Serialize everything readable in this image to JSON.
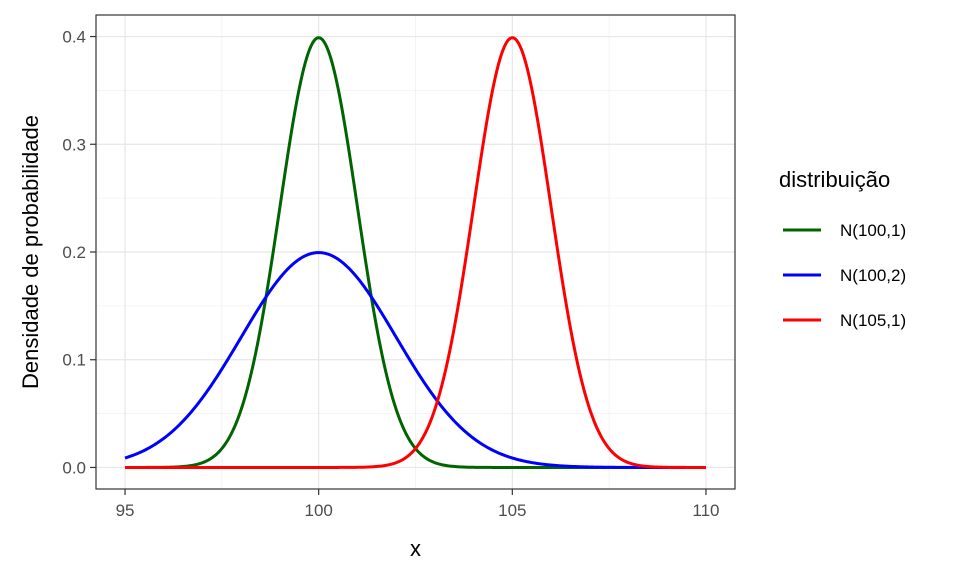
{
  "chart_data": {
    "type": "line",
    "xlabel": "x",
    "ylabel": "Densidade de probabilidade",
    "xlim": [
      95,
      110
    ],
    "ylim": [
      0,
      0.4
    ],
    "x_ticks": [
      95,
      100,
      105,
      110
    ],
    "y_ticks": [
      0.0,
      0.1,
      0.2,
      0.3,
      0.4
    ],
    "x_tick_labels": [
      "95",
      "100",
      "105",
      "110"
    ],
    "y_tick_labels": [
      "0.0",
      "0.1",
      "0.2",
      "0.3",
      "0.4"
    ],
    "grid": true,
    "legend": {
      "title": "distribuição",
      "position": "right"
    },
    "series": [
      {
        "name": "N(100,1)",
        "distribution": "normal",
        "mean": 100,
        "sd": 1,
        "color": "#006400"
      },
      {
        "name": "N(100,2)",
        "distribution": "normal",
        "mean": 100,
        "sd": 2,
        "color": "#0000ff"
      },
      {
        "name": "N(105,1)",
        "distribution": "normal",
        "mean": 105,
        "sd": 1,
        "color": "#ff0000"
      }
    ],
    "x_range": [
      95,
      110
    ]
  }
}
